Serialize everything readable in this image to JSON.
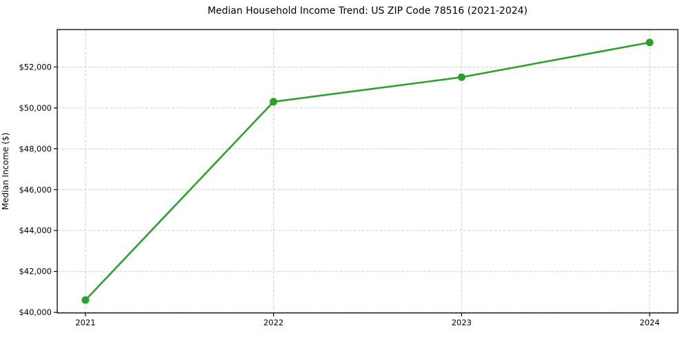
{
  "figure": {
    "background": "#ffffff"
  },
  "chart_data": {
    "type": "line",
    "title": "Median Household Income Trend: US ZIP Code 78516 (2021-2024)",
    "xlabel": "",
    "ylabel": "Median Income ($)",
    "x": [
      2021,
      2022,
      2023,
      2024
    ],
    "x_tick_labels": [
      "2021",
      "2022",
      "2023",
      "2024"
    ],
    "series": [
      {
        "name": "Median Household Income",
        "values": [
          40600,
          50300,
          51500,
          53200
        ],
        "color": "#2ca02c",
        "marker": "circle",
        "line_width": 2.6,
        "marker_radius": 5.5
      }
    ],
    "xlim": [
      2020.85,
      2024.15
    ],
    "ylim": [
      39970,
      53830
    ],
    "yticks": [
      40000,
      42000,
      44000,
      46000,
      48000,
      50000,
      52000
    ],
    "y_tick_labels": [
      "$40,000",
      "$42,000",
      "$44,000",
      "$46,000",
      "$48,000",
      "$50,000",
      "$52,000"
    ],
    "grid": true,
    "grid_style": "dashed",
    "grid_color": "#c9c9c9",
    "axis_color": "#000000",
    "tick_label_color": "#000000",
    "legend_position": "none"
  }
}
